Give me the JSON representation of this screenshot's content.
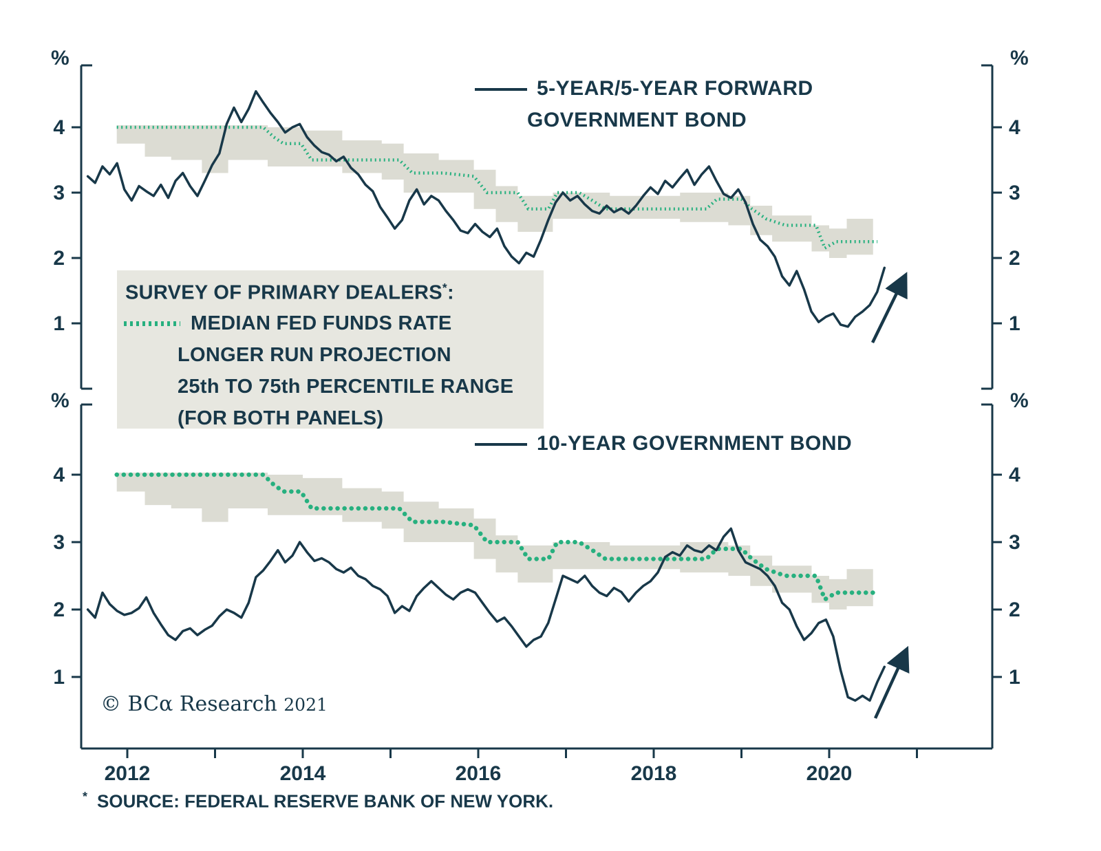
{
  "colors": {
    "navy": "#183849",
    "green": "#27b07f",
    "band_gray": "#dcdcd3",
    "legend_bg": "#e7e7e0",
    "background": "#ffffff"
  },
  "axes": {
    "y_unit": "%",
    "y_ticks": [
      1,
      2,
      3,
      4
    ],
    "x_label_years": [
      2012,
      2014,
      2016,
      2018,
      2020
    ],
    "x_minor_tick_years": [
      2012,
      2013,
      2014,
      2015,
      2016,
      2017,
      2018,
      2019,
      2020,
      2021
    ]
  },
  "legend": {
    "title_main": "SURVEY OF PRIMARY DEALERS",
    "title_sup": "*",
    "title_colon": ":",
    "line_median": "MEDIAN FED FUNDS RATE",
    "line_longer_run": "LONGER RUN PROJECTION",
    "line_percentile": "25th TO 75th PERCENTILE RANGE",
    "line_both_panels": "(FOR BOTH PANELS)"
  },
  "copyright": {
    "main": "© BCα Research",
    "year": "2021"
  },
  "footnote": {
    "star": "*",
    "text": "SOURCE: FEDERAL RESERVE BANK OF NEW YORK."
  },
  "chart_data": {
    "type": "line",
    "xlim": [
      2011.47,
      2021.86
    ],
    "grid": false,
    "x_tick_labels": [
      "2012",
      "2014",
      "2016",
      "2018",
      "2020"
    ],
    "y_unit": "%",
    "survey_median": {
      "name": "Median Fed Funds Rate Longer Run Projection (Survey of Primary Dealers)",
      "style": "dotted",
      "color": "#27b07f",
      "x": [
        2011.88,
        2013.55,
        2013.67,
        2013.78,
        2013.98,
        2014.1,
        2015.1,
        2015.25,
        2015.6,
        2015.95,
        2016.1,
        2016.45,
        2016.57,
        2016.8,
        2016.9,
        2017.15,
        2017.3,
        2017.45,
        2018.6,
        2018.72,
        2019.0,
        2019.12,
        2019.28,
        2019.5,
        2019.85,
        2019.95,
        2020.08,
        2020.55
      ],
      "y": [
        4.0,
        4.0,
        3.85,
        3.75,
        3.75,
        3.5,
        3.5,
        3.3,
        3.3,
        3.25,
        3.0,
        3.0,
        2.75,
        2.75,
        3.0,
        3.0,
        2.88,
        2.75,
        2.75,
        2.9,
        2.9,
        2.75,
        2.6,
        2.5,
        2.5,
        2.15,
        2.25,
        2.25
      ]
    },
    "survey_band": {
      "name": "25th to 75th Percentile Range (for both panels)",
      "style": "band",
      "color": "#dcdcd3",
      "x": [
        2011.88,
        2012.2,
        2012.5,
        2012.85,
        2013.15,
        2013.6,
        2014.0,
        2014.45,
        2014.9,
        2015.15,
        2015.55,
        2015.95,
        2016.2,
        2016.45,
        2016.85,
        2017.5,
        2018.3,
        2018.85,
        2019.1,
        2019.35,
        2019.8,
        2020.0,
        2020.2,
        2020.5
      ],
      "lo": [
        3.75,
        3.55,
        3.5,
        3.3,
        3.5,
        3.4,
        3.4,
        3.3,
        3.2,
        3.0,
        3.0,
        2.75,
        2.55,
        2.4,
        2.6,
        2.6,
        2.55,
        2.5,
        2.35,
        2.25,
        2.1,
        2.0,
        2.05,
        2.05
      ],
      "hi": [
        4.03,
        4.03,
        4.03,
        4.03,
        4.03,
        4.0,
        3.95,
        3.8,
        3.75,
        3.6,
        3.5,
        3.35,
        3.1,
        2.95,
        3.0,
        2.95,
        3.0,
        2.95,
        2.8,
        2.65,
        2.5,
        2.45,
        2.6,
        2.6
      ]
    },
    "panels": [
      {
        "name": "5y5y_forward_government_bond",
        "title": [
          "5-YEAR/5-YEAR FORWARD",
          "GOVERNMENT BOND"
        ],
        "ylim": [
          0,
          4.95
        ],
        "yticks": [
          1,
          2,
          3,
          4
        ],
        "line": {
          "name": "5-Year/5-Year Forward Government Bond",
          "color": "#183849",
          "x0": 2011.55,
          "dx": 0.0833,
          "y": [
            3.25,
            3.15,
            3.4,
            3.28,
            3.45,
            3.05,
            2.88,
            3.1,
            3.02,
            2.95,
            3.12,
            2.92,
            3.18,
            3.3,
            3.1,
            2.95,
            3.18,
            3.42,
            3.6,
            4.05,
            4.3,
            4.08,
            4.28,
            4.55,
            4.38,
            4.22,
            4.08,
            3.92,
            4.0,
            4.05,
            3.85,
            3.72,
            3.62,
            3.58,
            3.48,
            3.55,
            3.38,
            3.28,
            3.12,
            3.02,
            2.78,
            2.62,
            2.45,
            2.58,
            2.88,
            3.05,
            2.82,
            2.95,
            2.88,
            2.72,
            2.58,
            2.42,
            2.38,
            2.52,
            2.4,
            2.32,
            2.45,
            2.18,
            2.02,
            1.92,
            2.08,
            2.02,
            2.28,
            2.58,
            2.85,
            3.0,
            2.88,
            2.95,
            2.82,
            2.72,
            2.68,
            2.8,
            2.7,
            2.76,
            2.68,
            2.8,
            2.95,
            3.08,
            2.98,
            3.18,
            3.08,
            3.22,
            3.35,
            3.12,
            3.28,
            3.4,
            3.18,
            2.98,
            2.92,
            3.05,
            2.85,
            2.52,
            2.28,
            2.18,
            2.02,
            1.72,
            1.58,
            1.8,
            1.52,
            1.18,
            1.02,
            1.1,
            1.15,
            0.98,
            0.95,
            1.1,
            1.18,
            1.28,
            1.48,
            1.85
          ]
        }
      },
      {
        "name": "10_year_government_bond",
        "title": [
          "10-YEAR GOVERNMENT BOND"
        ],
        "ylim": [
          -0.06,
          5.02
        ],
        "yticks": [
          1,
          2,
          3,
          4
        ],
        "line": {
          "name": "10-Year Government Bond",
          "color": "#183849",
          "x0": 2011.55,
          "dx": 0.0833,
          "y": [
            2.0,
            1.88,
            2.25,
            2.08,
            1.98,
            1.92,
            1.95,
            2.02,
            2.18,
            1.95,
            1.78,
            1.62,
            1.55,
            1.68,
            1.72,
            1.62,
            1.7,
            1.76,
            1.9,
            2.0,
            1.95,
            1.88,
            2.1,
            2.48,
            2.58,
            2.72,
            2.88,
            2.7,
            2.8,
            3.0,
            2.85,
            2.72,
            2.76,
            2.7,
            2.6,
            2.55,
            2.62,
            2.5,
            2.45,
            2.35,
            2.3,
            2.2,
            1.95,
            2.05,
            1.98,
            2.2,
            2.32,
            2.42,
            2.32,
            2.22,
            2.15,
            2.25,
            2.3,
            2.25,
            2.1,
            1.95,
            1.82,
            1.88,
            1.75,
            1.6,
            1.45,
            1.55,
            1.6,
            1.8,
            2.15,
            2.5,
            2.45,
            2.4,
            2.5,
            2.35,
            2.25,
            2.2,
            2.32,
            2.26,
            2.12,
            2.25,
            2.35,
            2.42,
            2.55,
            2.78,
            2.85,
            2.8,
            2.95,
            2.88,
            2.85,
            2.95,
            2.88,
            3.08,
            3.2,
            2.88,
            2.7,
            2.65,
            2.6,
            2.5,
            2.35,
            2.1,
            2.0,
            1.75,
            1.55,
            1.65,
            1.8,
            1.85,
            1.6,
            1.1,
            0.7,
            0.65,
            0.72,
            0.65,
            0.92,
            1.15
          ]
        }
      }
    ]
  }
}
